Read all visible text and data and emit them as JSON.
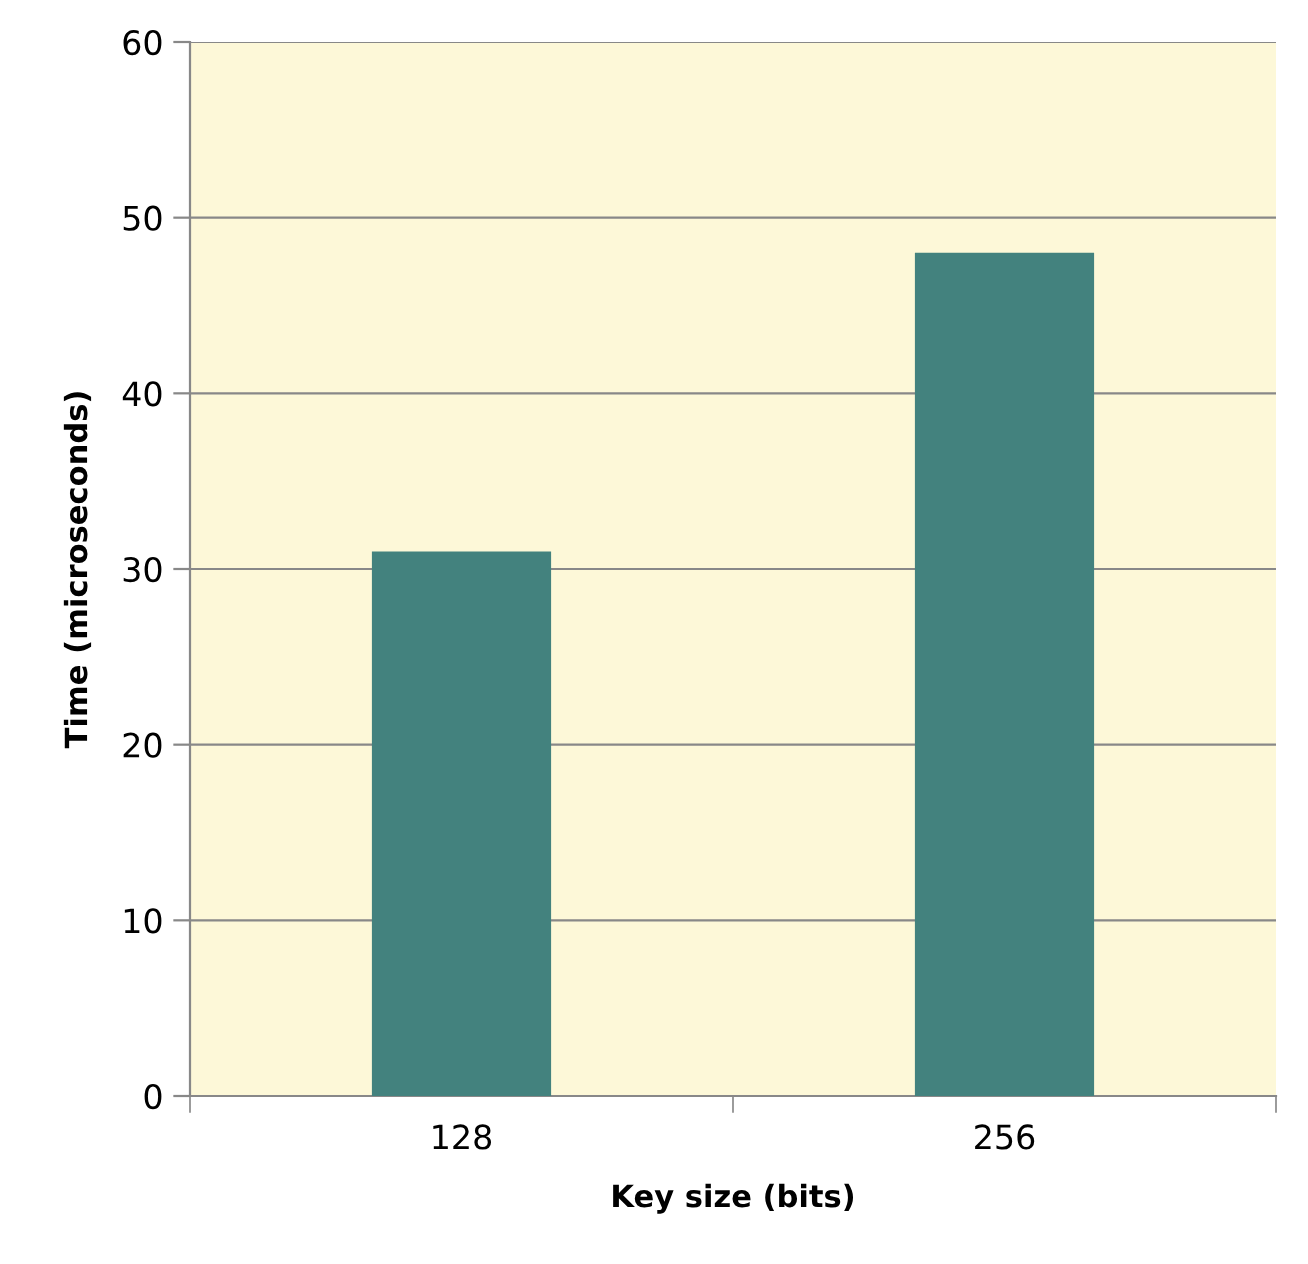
{
  "chart_data": {
    "type": "bar",
    "categories": [
      "128",
      "256"
    ],
    "values": [
      31,
      48
    ],
    "color": "#43827e",
    "xlabel": "Key size (bits)",
    "ylabel": "Time (microseconds)",
    "ylim": [
      0,
      60
    ],
    "yticks": [
      0,
      10,
      20,
      30,
      40,
      50,
      60
    ],
    "grid": "y"
  }
}
